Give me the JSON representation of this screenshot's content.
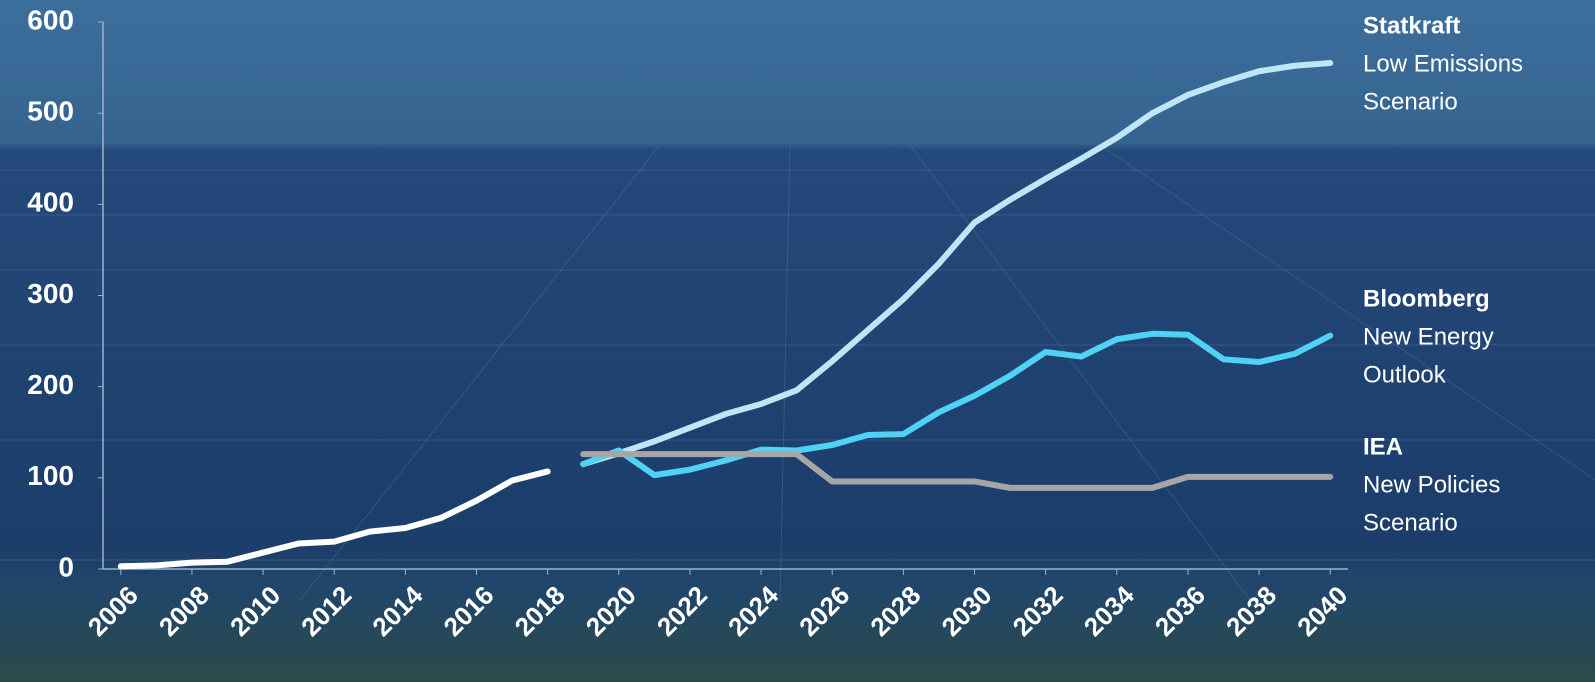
{
  "chart_data": {
    "type": "line",
    "xlim": [
      2005.5,
      2040.5
    ],
    "xticks": [
      2006,
      2008,
      2010,
      2012,
      2014,
      2016,
      2018,
      2020,
      2022,
      2024,
      2026,
      2028,
      2030,
      2032,
      2034,
      2036,
      2038,
      2040
    ],
    "ylim": [
      0,
      600
    ],
    "yticks": [
      0,
      100,
      200,
      300,
      400,
      500,
      600
    ],
    "series": [
      {
        "color": "#ffffff",
        "x": [
          2006,
          2007,
          2008,
          2009,
          2010,
          2011,
          2012,
          2013,
          2014,
          2015,
          2016,
          2017,
          2018
        ],
        "values": [
          3,
          4,
          7,
          8,
          18,
          28,
          30,
          41,
          45,
          56,
          75,
          97,
          107
        ]
      },
      {
        "name": "Statkraft",
        "description": [
          "Low Emissions",
          "Scenario"
        ],
        "color": "#bfe6f7",
        "x": [
          2019,
          2020,
          2021,
          2022,
          2023,
          2024,
          2025,
          2026,
          2027,
          2028,
          2029,
          2030,
          2031,
          2032,
          2033,
          2034,
          2035,
          2036,
          2037,
          2038,
          2039,
          2040
        ],
        "values": [
          115,
          127,
          140,
          155,
          170,
          181,
          196,
          228,
          262,
          296,
          335,
          380,
          405,
          428,
          450,
          473,
          500,
          520,
          534,
          546,
          552,
          555
        ]
      },
      {
        "name": "Bloomberg",
        "description": [
          "New Energy",
          "Outlook"
        ],
        "color": "#4fd2f5",
        "x": [
          2019,
          2020,
          2021,
          2022,
          2023,
          2024,
          2025,
          2026,
          2027,
          2028,
          2029,
          2030,
          2031,
          2032,
          2033,
          2034,
          2035,
          2036,
          2037,
          2038,
          2039,
          2040
        ],
        "values": [
          115,
          130,
          103,
          109,
          119,
          131,
          130,
          136,
          147,
          148,
          172,
          190,
          212,
          238,
          233,
          252,
          258,
          257,
          230,
          227,
          236,
          256
        ]
      },
      {
        "name": "IEA",
        "description": [
          "New Policies",
          "Scenario"
        ],
        "color": "#a6a6a6",
        "x": [
          2019,
          2020,
          2021,
          2022,
          2023,
          2024,
          2025,
          2026,
          2027,
          2028,
          2029,
          2030,
          2031,
          2032,
          2033,
          2034,
          2035,
          2036,
          2037,
          2038,
          2039,
          2040
        ],
        "values": [
          126,
          126,
          126,
          126,
          126,
          126,
          126,
          96,
          96,
          96,
          96,
          96,
          89,
          89,
          89,
          89,
          89,
          101,
          101,
          101,
          101,
          101
        ]
      }
    ]
  }
}
